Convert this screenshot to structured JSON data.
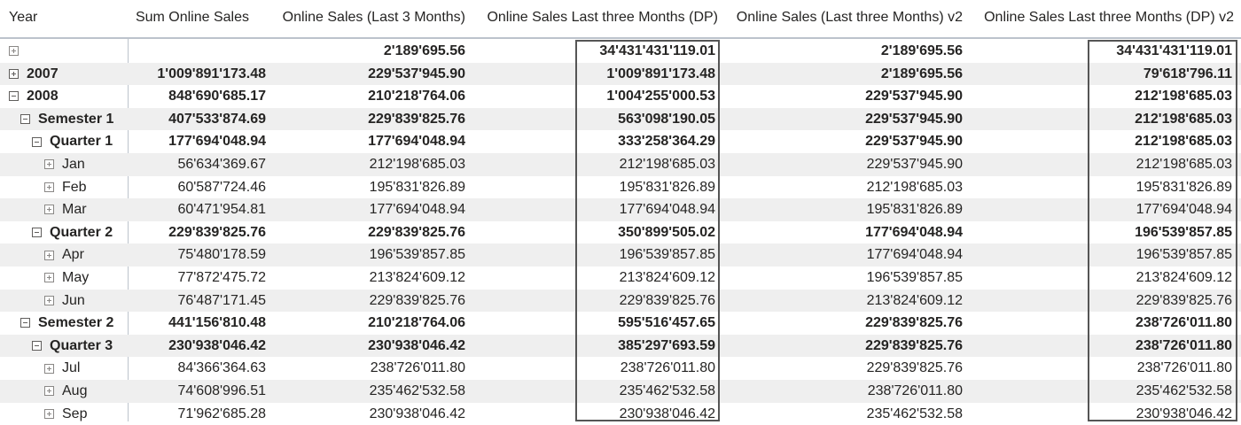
{
  "columns": [
    "Year",
    "Sum Online Sales",
    "Online Sales (Last 3 Months)",
    "Online Sales Last three Months (DP)",
    "Online Sales (Last three Months) v2",
    "Online Sales Last three Months (DP) v2"
  ],
  "rows": [
    {
      "label": "",
      "level": 0,
      "toggle": "plus",
      "bold": true,
      "values": [
        "",
        "2'189'695.56",
        "34'431'431'119.01",
        "2'189'695.56",
        "34'431'431'119.01"
      ]
    },
    {
      "label": "2007",
      "level": 0,
      "toggle": "plus",
      "bold": true,
      "values": [
        "1'009'891'173.48",
        "229'537'945.90",
        "1'009'891'173.48",
        "2'189'695.56",
        "79'618'796.11"
      ]
    },
    {
      "label": "2008",
      "level": 0,
      "toggle": "minus",
      "bold": true,
      "values": [
        "848'690'685.17",
        "210'218'764.06",
        "1'004'255'000.53",
        "229'537'945.90",
        "212'198'685.03"
      ]
    },
    {
      "label": "Semester 1",
      "level": 1,
      "toggle": "minus",
      "bold": true,
      "values": [
        "407'533'874.69",
        "229'839'825.76",
        "563'098'190.05",
        "229'537'945.90",
        "212'198'685.03"
      ]
    },
    {
      "label": "Quarter 1",
      "level": 2,
      "toggle": "minus",
      "bold": true,
      "values": [
        "177'694'048.94",
        "177'694'048.94",
        "333'258'364.29",
        "229'537'945.90",
        "212'198'685.03"
      ]
    },
    {
      "label": "Jan",
      "level": 3,
      "toggle": "plus",
      "bold": false,
      "values": [
        "56'634'369.67",
        "212'198'685.03",
        "212'198'685.03",
        "229'537'945.90",
        "212'198'685.03"
      ]
    },
    {
      "label": "Feb",
      "level": 3,
      "toggle": "plus",
      "bold": false,
      "values": [
        "60'587'724.46",
        "195'831'826.89",
        "195'831'826.89",
        "212'198'685.03",
        "195'831'826.89"
      ]
    },
    {
      "label": "Mar",
      "level": 3,
      "toggle": "plus",
      "bold": false,
      "values": [
        "60'471'954.81",
        "177'694'048.94",
        "177'694'048.94",
        "195'831'826.89",
        "177'694'048.94"
      ]
    },
    {
      "label": "Quarter 2",
      "level": 2,
      "toggle": "minus",
      "bold": true,
      "values": [
        "229'839'825.76",
        "229'839'825.76",
        "350'899'505.02",
        "177'694'048.94",
        "196'539'857.85"
      ]
    },
    {
      "label": "Apr",
      "level": 3,
      "toggle": "plus",
      "bold": false,
      "values": [
        "75'480'178.59",
        "196'539'857.85",
        "196'539'857.85",
        "177'694'048.94",
        "196'539'857.85"
      ]
    },
    {
      "label": "May",
      "level": 3,
      "toggle": "plus",
      "bold": false,
      "values": [
        "77'872'475.72",
        "213'824'609.12",
        "213'824'609.12",
        "196'539'857.85",
        "213'824'609.12"
      ]
    },
    {
      "label": "Jun",
      "level": 3,
      "toggle": "plus",
      "bold": false,
      "values": [
        "76'487'171.45",
        "229'839'825.76",
        "229'839'825.76",
        "213'824'609.12",
        "229'839'825.76"
      ]
    },
    {
      "label": "Semester 2",
      "level": 1,
      "toggle": "minus",
      "bold": true,
      "values": [
        "441'156'810.48",
        "210'218'764.06",
        "595'516'457.65",
        "229'839'825.76",
        "238'726'011.80"
      ]
    },
    {
      "label": "Quarter 3",
      "level": 2,
      "toggle": "minus",
      "bold": true,
      "values": [
        "230'938'046.42",
        "230'938'046.42",
        "385'297'693.59",
        "229'839'825.76",
        "238'726'011.80"
      ]
    },
    {
      "label": "Jul",
      "level": 3,
      "toggle": "plus",
      "bold": false,
      "values": [
        "84'366'364.63",
        "238'726'011.80",
        "238'726'011.80",
        "229'839'825.76",
        "238'726'011.80"
      ]
    },
    {
      "label": "Aug",
      "level": 3,
      "toggle": "plus",
      "bold": false,
      "values": [
        "74'608'996.51",
        "235'462'532.58",
        "235'462'532.58",
        "238'726'011.80",
        "235'462'532.58"
      ]
    },
    {
      "label": "Sep",
      "level": 3,
      "toggle": "plus",
      "bold": false,
      "values": [
        "71'962'685.28",
        "230'938'046.42",
        "230'938'046.42",
        "235'462'532.58",
        "230'938'046.42"
      ]
    }
  ],
  "colors": {
    "header_border": "#bcc3cc",
    "alt_row": "#efefef",
    "highlight_border": "#555555",
    "text": "#252423"
  }
}
